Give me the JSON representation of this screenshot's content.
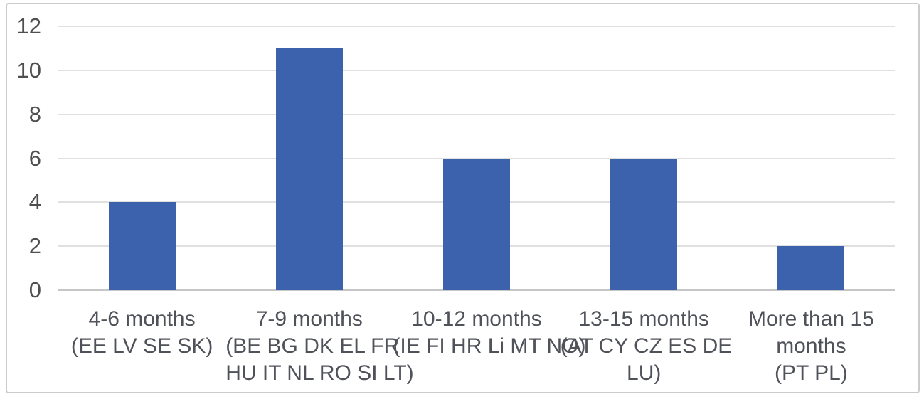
{
  "figure": {
    "background_color": "#ffffff",
    "frame_border_color": "#cccccc"
  },
  "chart_data": {
    "type": "bar",
    "title": "",
    "xlabel": "",
    "ylabel": "",
    "categories": [
      "4-6 months\n(EE LV SE SK)",
      "7-9 months\n(BE BG DK EL FR\nHU IT NL RO SI LT)",
      "10-12 months\n(IE FI HR Li MT NO)",
      "13-15 months\n(AT CY CZ ES DE\nLU)",
      "More than 15\nmonths\n(PT PL)"
    ],
    "values": [
      4,
      11,
      6,
      6,
      2
    ],
    "ylim": [
      0,
      12
    ],
    "yticks": [
      0,
      2,
      4,
      6,
      8,
      10,
      12
    ],
    "grid": true,
    "legend": false,
    "bar_color": "#3d62ad",
    "gridline_color": "#e0e0e0",
    "axis_line_color": "#c6c6c6",
    "tick_label_color": "#4f4f4f",
    "category_label_color": "#50525a"
  }
}
